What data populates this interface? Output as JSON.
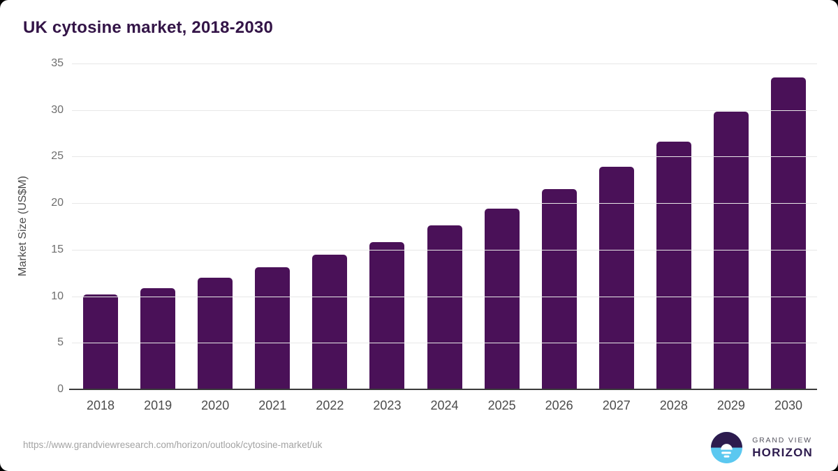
{
  "page": {
    "title": "UK cytosine market, 2018-2030",
    "source_url": "https://www.grandviewresearch.com/horizon/outlook/cytosine-market/uk"
  },
  "logo": {
    "top_text": "GRAND VIEW",
    "bottom_text": "HORIZON"
  },
  "colors": {
    "bar": "#4a1158",
    "title": "#331447",
    "logo_purple": "#2d1b4e",
    "logo_blue": "#5bc8f0"
  },
  "chart_data": {
    "type": "bar",
    "title": "UK cytosine market, 2018-2030",
    "xlabel": "",
    "ylabel": "Market Size (US$M)",
    "categories": [
      "2018",
      "2019",
      "2020",
      "2021",
      "2022",
      "2023",
      "2024",
      "2025",
      "2026",
      "2027",
      "2028",
      "2029",
      "2030"
    ],
    "values": [
      10.2,
      10.9,
      12.0,
      13.1,
      14.5,
      15.8,
      17.6,
      19.4,
      21.5,
      23.9,
      26.6,
      29.8,
      33.5
    ],
    "ylim": [
      0,
      35
    ],
    "yticks": [
      0,
      5,
      10,
      15,
      20,
      25,
      30,
      35
    ],
    "grid": true,
    "legend_position": "none",
    "bar_color": "#4a1158"
  }
}
